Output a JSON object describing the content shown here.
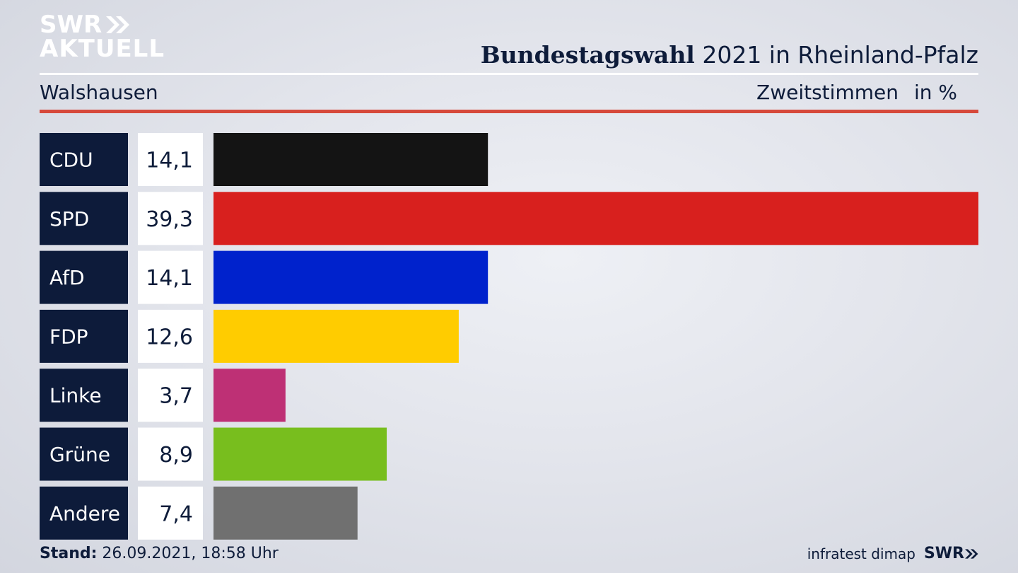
{
  "brand": {
    "line1": "SWR",
    "line2": "AKTUELL",
    "footer_logo": "SWR"
  },
  "header": {
    "title_bold": "Bundestagswahl",
    "title_rest": " 2021 in Rheinland-Pfalz",
    "location": "Walshausen",
    "vote_type": "Zweitstimmen",
    "unit": "in %"
  },
  "footer": {
    "stand_label": "Stand:",
    "stand_value": " 26.09.2021, 18:58 Uhr",
    "source": "infratest dimap"
  },
  "colors": {
    "label_bg": "#0d1b3a",
    "accent_red": "#d6493b"
  },
  "chart_data": {
    "type": "bar",
    "orientation": "horizontal",
    "title": "Bundestagswahl 2021 in Rheinland-Pfalz",
    "categories": [
      "CDU",
      "SPD",
      "AfD",
      "FDP",
      "Linke",
      "Grüne",
      "Andere"
    ],
    "values": [
      14.1,
      39.3,
      14.1,
      12.6,
      3.7,
      8.9,
      7.4
    ],
    "value_labels": [
      "14,1",
      "39,3",
      "14,1",
      "12,6",
      "3,7",
      "8,9",
      "7,4"
    ],
    "colors": [
      "#141414",
      "#d8201e",
      "#0022cc",
      "#ffcc00",
      "#be3075",
      "#78be1e",
      "#707070"
    ],
    "xlim": [
      0,
      39.3
    ],
    "unit": "in %",
    "grid": false
  }
}
